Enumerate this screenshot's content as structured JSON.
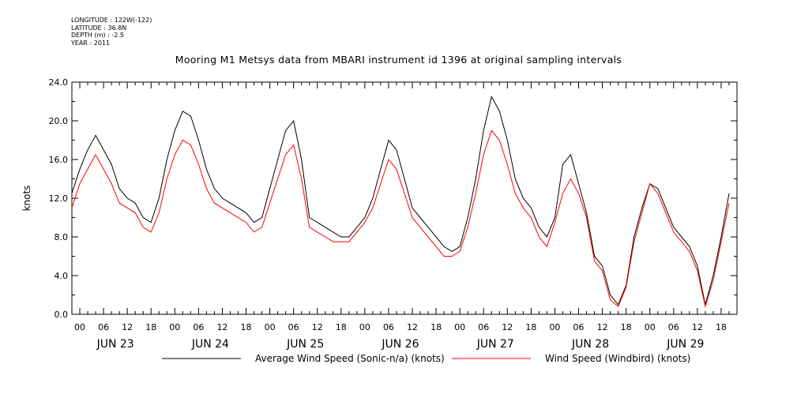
{
  "metadata": {
    "longitude": "LONGITUDE : 122W(-122)",
    "latitude": "LATITUDE : 36.8N",
    "depth": "DEPTH (m) : -2.5",
    "year": "YEAR : 2011"
  },
  "chart_data": {
    "type": "line",
    "title": "Mooring M1 Metsys data from MBARI instrument id 1396 at original sampling intervals",
    "ylabel": "knots",
    "xlabel": "",
    "ylim": [
      0,
      24
    ],
    "xlim_hours": [
      -2,
      166
    ],
    "y_ticks": [
      "0.0",
      "4.0",
      "8.0",
      "12.0",
      "16.0",
      "20.0",
      "24.0"
    ],
    "x_hour_ticks": [
      "00",
      "06",
      "12",
      "18",
      "00",
      "06",
      "12",
      "18",
      "00",
      "06",
      "12",
      "18",
      "00",
      "06",
      "12",
      "18",
      "00",
      "06",
      "12",
      "18",
      "00",
      "06",
      "12",
      "18",
      "00",
      "06",
      "12",
      "18"
    ],
    "day_labels": [
      "JUN 23",
      "JUN 24",
      "JUN 25",
      "JUN 26",
      "JUN 27",
      "JUN 28",
      "JUN 29"
    ],
    "grid": false,
    "legend_position": "bottom",
    "series": [
      {
        "name": "Average Wind Speed (Sonic-n/a) (knots)",
        "color": "#000000",
        "x_hours": [
          -2,
          0,
          2,
          4,
          6,
          8,
          10,
          12,
          14,
          16,
          18,
          20,
          22,
          24,
          26,
          28,
          30,
          32,
          34,
          36,
          38,
          40,
          42,
          44,
          46,
          48,
          50,
          52,
          54,
          56,
          58,
          60,
          62,
          64,
          66,
          68,
          70,
          72,
          74,
          76,
          78,
          80,
          82,
          84,
          86,
          88,
          90,
          92,
          94,
          96,
          98,
          100,
          102,
          104,
          106,
          108,
          110,
          112,
          114,
          116,
          118,
          120,
          122,
          124,
          126,
          128,
          130,
          132,
          134,
          136,
          138,
          140,
          142,
          144,
          146,
          148,
          150,
          152,
          154,
          156,
          158,
          160,
          162,
          164
        ],
        "values": [
          12.5,
          15.0,
          17.0,
          18.5,
          17.0,
          15.5,
          13.0,
          12.0,
          11.5,
          10.0,
          9.5,
          12.0,
          16.0,
          19.0,
          21.0,
          20.5,
          18.0,
          15.0,
          13.0,
          12.0,
          11.5,
          11.0,
          10.5,
          9.5,
          10.0,
          13.0,
          16.0,
          19.0,
          20.0,
          16.0,
          10.0,
          9.5,
          9.0,
          8.5,
          8.0,
          8.0,
          9.0,
          10.0,
          12.0,
          15.0,
          18.0,
          17.0,
          14.0,
          11.0,
          10.0,
          9.0,
          8.0,
          7.0,
          6.5,
          7.0,
          10.0,
          14.0,
          19.0,
          22.5,
          21.0,
          18.0,
          14.0,
          12.0,
          11.0,
          9.0,
          8.0,
          10.0,
          15.5,
          16.5,
          13.5,
          10.5,
          6.0,
          5.0,
          2.0,
          1.0,
          3.0,
          8.0,
          11.0,
          13.5,
          13.0,
          11.0,
          9.0,
          8.0,
          7.0,
          5.0,
          1.0,
          4.0,
          8.0,
          12.5
        ]
      },
      {
        "name": "Wind Speed (Windbird) (knots)",
        "color": "#ff0000",
        "x_hours": [
          -2,
          0,
          2,
          4,
          6,
          8,
          10,
          12,
          14,
          16,
          18,
          20,
          22,
          24,
          26,
          28,
          30,
          32,
          34,
          36,
          38,
          40,
          42,
          44,
          46,
          48,
          50,
          52,
          54,
          56,
          58,
          60,
          62,
          64,
          66,
          68,
          70,
          72,
          74,
          76,
          78,
          80,
          82,
          84,
          86,
          88,
          90,
          92,
          94,
          96,
          98,
          100,
          102,
          104,
          106,
          108,
          110,
          112,
          114,
          116,
          118,
          120,
          122,
          124,
          126,
          128,
          130,
          132,
          134,
          136,
          138,
          140,
          142,
          144,
          146,
          148,
          150,
          152,
          154,
          156,
          158,
          160,
          162,
          164
        ],
        "values": [
          11.0,
          13.5,
          15.0,
          16.5,
          15.0,
          13.5,
          11.5,
          11.0,
          10.5,
          9.0,
          8.5,
          10.5,
          14.0,
          16.5,
          18.0,
          17.5,
          15.5,
          13.0,
          11.5,
          11.0,
          10.5,
          10.0,
          9.5,
          8.5,
          9.0,
          11.5,
          14.0,
          16.5,
          17.5,
          14.0,
          9.0,
          8.5,
          8.0,
          7.5,
          7.5,
          7.5,
          8.5,
          9.5,
          11.0,
          13.5,
          16.0,
          15.0,
          12.5,
          10.0,
          9.0,
          8.0,
          7.0,
          6.0,
          6.0,
          6.5,
          9.0,
          12.5,
          16.5,
          19.0,
          18.0,
          15.5,
          12.5,
          11.0,
          10.0,
          8.0,
          7.0,
          9.5,
          12.5,
          14.0,
          12.5,
          10.0,
          5.5,
          4.5,
          1.5,
          0.8,
          2.8,
          7.5,
          10.5,
          13.5,
          12.5,
          10.5,
          8.5,
          7.5,
          6.5,
          4.5,
          0.8,
          3.5,
          7.5,
          11.5
        ]
      }
    ]
  }
}
